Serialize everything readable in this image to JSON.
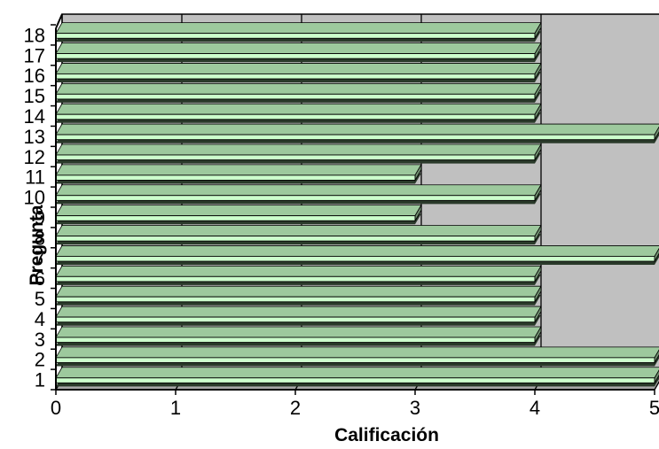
{
  "chart_data": {
    "type": "bar",
    "orientation": "horizontal",
    "style": "3d",
    "categories": [
      "1",
      "2",
      "3",
      "4",
      "5",
      "6",
      "7",
      "8",
      "9",
      "10",
      "11",
      "12",
      "13",
      "14",
      "15",
      "16",
      "17",
      "18"
    ],
    "values": [
      5,
      5,
      4,
      4,
      4,
      4,
      5,
      4,
      3,
      4,
      3,
      4,
      5,
      4,
      4,
      4,
      4,
      4
    ],
    "title": "",
    "xlabel": "Calificación",
    "ylabel": "Pregunta",
    "xlim": [
      0,
      5
    ],
    "xticks": [
      "0",
      "1",
      "2",
      "3",
      "4",
      "5"
    ],
    "grid": true,
    "legend": "none",
    "colors": {
      "bar_face": "#ccffcc",
      "bar_dark": "#2a3a2a",
      "plot_wall": "#c0c0c0",
      "grid": "#000000",
      "background": "#ffffff"
    }
  }
}
